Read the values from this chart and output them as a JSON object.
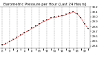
{
  "title": "Barometric Pressure per Hour (Last 24 Hours)",
  "hours": [
    0,
    1,
    2,
    3,
    4,
    5,
    6,
    7,
    8,
    9,
    10,
    11,
    12,
    13,
    14,
    15,
    16,
    17,
    18,
    19,
    20,
    21,
    22,
    23
  ],
  "pressure": [
    29.42,
    29.44,
    29.49,
    29.53,
    29.57,
    29.62,
    29.67,
    29.71,
    29.76,
    29.8,
    29.85,
    29.9,
    29.93,
    29.97,
    29.99,
    30.0,
    30.02,
    30.04,
    30.07,
    30.1,
    30.06,
    29.98,
    29.85,
    29.75
  ],
  "ylim_min": 29.35,
  "ylim_max": 30.2,
  "line_color": "#cc0000",
  "marker_color": "#222222",
  "bg_color": "#ffffff",
  "grid_color": "#999999",
  "title_fontsize": 3.8,
  "tick_fontsize": 2.8,
  "ytick_values": [
    29.4,
    29.5,
    29.6,
    29.7,
    29.8,
    29.9,
    30.0,
    30.1,
    30.2
  ],
  "xtick_step": 2,
  "figsize": [
    1.6,
    0.87
  ],
  "dpi": 100
}
